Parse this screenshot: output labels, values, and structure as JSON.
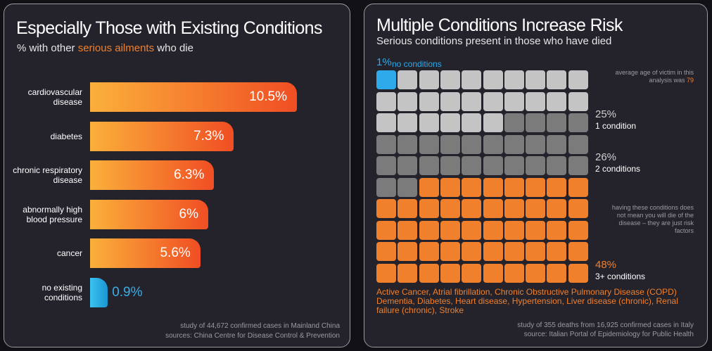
{
  "chart_data": [
    {
      "type": "bar",
      "title": "Especially Those with Existing Conditions",
      "subtitle": [
        "% with other ",
        "serious ailments",
        " who die"
      ],
      "categories": [
        "cardiovascular disease",
        "diabetes",
        "chronic respiratory disease",
        "abnormally high blood pressure",
        "cancer",
        "no existing conditions"
      ],
      "values": [
        10.5,
        7.3,
        6.3,
        6,
        5.6,
        0.9
      ],
      "value_labels": [
        "10.5%",
        "7.3%",
        "6.3%",
        "6%",
        "5.6%",
        "0.9%"
      ],
      "colors": [
        "#f04e23",
        "#f04e23",
        "#f04e23",
        "#f04e23",
        "#f04e23",
        "#1b95d2"
      ],
      "notes": [
        "study of 44,672 confirmed cases in Mainland China",
        "sources: China Centre for Disease Control & Prevention"
      ]
    },
    {
      "type": "waffle",
      "title": "Multiple Conditions Increase Risk",
      "subtitle": "Serious conditions present in those who have died",
      "categories": [
        "no conditions",
        "1 condition",
        "2 conditions",
        "3+ conditions"
      ],
      "values": [
        1,
        25,
        26,
        48
      ],
      "value_labels": [
        "1%",
        "25%",
        "26%",
        "48%"
      ],
      "colors": [
        "#2ea9ea",
        "#c4c4c4",
        "#7b7b7b",
        "#f0802c"
      ],
      "annotations": [
        [
          "average age of victim in this analysis was ",
          "79"
        ],
        "having these conditions does not mean you will die of the disease – they are just risk factors"
      ],
      "conditions": "Active Cancer, Atrial fibrillation, Chronic Obstructive Pulmonary Disease (COPD) Dementia, Diabetes, Heart disease, Hypertension, Liver disease (chronic), Renal failure (chronic), Stroke",
      "notes": [
        "study of 355 deaths from 16,925 confirmed cases in Italy",
        "source: Italian Portal of Epidemiology for Public Health"
      ]
    }
  ]
}
